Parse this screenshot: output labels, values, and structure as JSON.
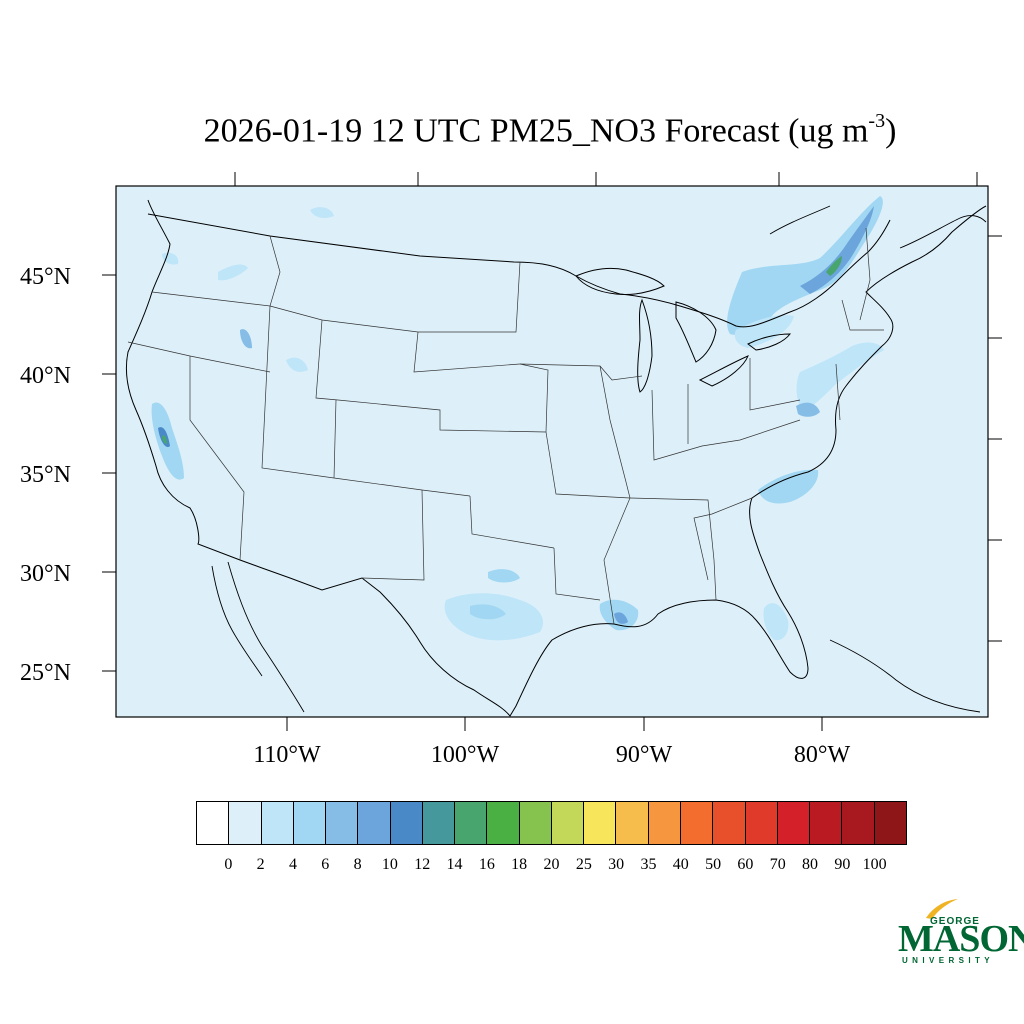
{
  "map": {
    "title_main": "2026-01-19 12 UTC PM25_NO3 Forecast (ug m",
    "title_exp": "-3",
    "title_close": ")",
    "lat_labels": [
      "45°N",
      "40°N",
      "35°N",
      "30°N",
      "25°N"
    ],
    "lon_labels": [
      "110°W",
      "100°W",
      "90°W",
      "80°W"
    ],
    "background_color": "#DDF0FA",
    "border_color": "#000000"
  },
  "colorbar": {
    "colors": [
      "#FFFFFF",
      "#DDF0FA",
      "#BFE5F8",
      "#A1D7F2",
      "#85BDE6",
      "#6BA5DB",
      "#4A89C8",
      "#45989C",
      "#48A56E",
      "#4AB043",
      "#86C24E",
      "#C3D758",
      "#F7E55C",
      "#F7BD4C",
      "#F6963F",
      "#F26D2E",
      "#E8502C",
      "#DF3A2A",
      "#D42028",
      "#BA1A22",
      "#A7191E",
      "#8E1518"
    ],
    "labels": [
      "0",
      "2",
      "4",
      "6",
      "8",
      "10",
      "12",
      "14",
      "16",
      "18",
      "20",
      "25",
      "30",
      "35",
      "40",
      "50",
      "60",
      "70",
      "80",
      "90",
      "100"
    ]
  },
  "logo": {
    "line1": "GEORGE",
    "line2": "MASON",
    "line3": "UNIVERSITY",
    "color": "#006633",
    "accent": "#F0B323"
  }
}
